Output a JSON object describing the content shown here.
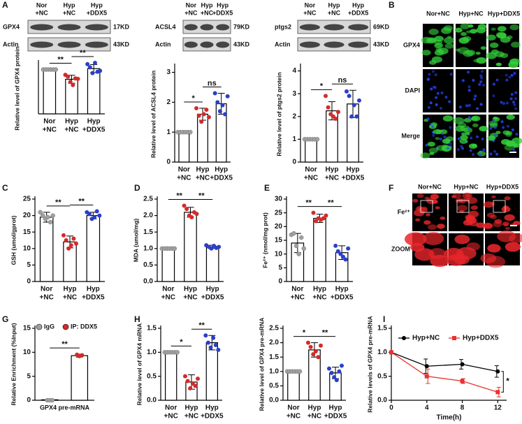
{
  "panel_labels": [
    "A",
    "B",
    "C",
    "D",
    "E",
    "F",
    "G",
    "H",
    "I"
  ],
  "blots": [
    {
      "lanes": [
        [
          "Nor",
          "+NC"
        ],
        [
          "Hyp",
          "+NC"
        ],
        [
          "Hyp",
          "+DDX5"
        ]
      ],
      "rows": [
        {
          "protein": "GPX4",
          "size": "17KD"
        },
        {
          "protein": "Actin",
          "size": "43KD"
        }
      ]
    },
    {
      "lanes": [
        [
          "Nor",
          "+NC"
        ],
        [
          "Hyp",
          "+NC"
        ],
        [
          "Hyp",
          "+DDX5"
        ]
      ],
      "rows": [
        {
          "protein": "ACSL4",
          "size": "79KD"
        },
        {
          "protein": "Actin",
          "size": "43KD"
        }
      ]
    },
    {
      "lanes": [
        [
          "Nor",
          "+NC"
        ],
        [
          "Hyp",
          "+NC"
        ],
        [
          "Hyp",
          "+DDX5"
        ]
      ],
      "rows": [
        {
          "protein": "ptgs2",
          "size": "69KD"
        },
        {
          "protein": "Actin",
          "size": "43KD"
        }
      ]
    }
  ],
  "micrographs": [
    {
      "columns": [
        "Nor+NC",
        "Hyp+NC",
        "Hyp+DDX5"
      ],
      "rows": [
        "GPX4",
        "DAPI",
        "Merge"
      ]
    },
    {
      "columns": [
        "Nor+NC",
        "Hyp+NC",
        "Hyp+DDX5"
      ],
      "rows": [
        "Fe²⁺",
        "ZOOM"
      ]
    }
  ],
  "chart_data": [
    {
      "type": "bar",
      "ylabel": "Relative level of GPX4 protein",
      "categories": [
        [
          "Nor",
          "+NC"
        ],
        [
          "Hyp",
          "+NC"
        ],
        [
          "Hyp",
          "+DDX5"
        ]
      ],
      "values": [
        1.0,
        0.78,
        1.02
      ],
      "errors": [
        0,
        0.09,
        0.09
      ],
      "points": [
        [
          1,
          1,
          1,
          1,
          1,
          1
        ],
        [
          0.88,
          0.84,
          0.72,
          0.65,
          0.8,
          0.79
        ],
        [
          1.12,
          1.05,
          0.92,
          1.15,
          0.95,
          0.97
        ]
      ],
      "point_colors": [
        "#a0a0a0",
        "#d42a2a",
        "#2b3fc7"
      ],
      "ylim": [
        0,
        1.15
      ],
      "annotations": [
        {
          "pair": [
            0,
            1
          ],
          "label": "**"
        },
        {
          "pair": [
            1,
            2
          ],
          "label": "**"
        }
      ]
    },
    {
      "type": "bar",
      "ylabel": "Relative level of ACSL4 protein",
      "categories": [
        [
          "Nor",
          "+NC"
        ],
        [
          "Hyp",
          "+NC"
        ],
        [
          "Hyp",
          "+DDX5"
        ]
      ],
      "values": [
        1.0,
        1.6,
        1.95
      ],
      "errors": [
        0,
        0.2,
        0.35
      ],
      "points": [
        [
          1,
          1,
          1,
          1,
          1,
          1
        ],
        [
          1.8,
          1.55,
          1.35,
          1.6,
          1.75,
          1.5
        ],
        [
          2.3,
          2.0,
          1.7,
          1.9,
          1.6,
          2.2
        ]
      ],
      "point_colors": [
        "#a0a0a0",
        "#d42a2a",
        "#2b3fc7"
      ],
      "ylim": [
        0,
        3.2
      ],
      "yticks": [
        0,
        1,
        2,
        3
      ],
      "annotations": [
        {
          "pair": [
            0,
            1
          ],
          "label": "*"
        },
        {
          "pair": [
            1,
            2
          ],
          "label": "ns"
        }
      ]
    },
    {
      "type": "bar",
      "ylabel": "Relative level of ptgs2 protein",
      "categories": [
        [
          "Nor",
          "+NC"
        ],
        [
          "Hyp",
          "+NC"
        ],
        [
          "Hyp",
          "+DDX5"
        ]
      ],
      "values": [
        1.0,
        2.25,
        2.55
      ],
      "errors": [
        0,
        0.4,
        0.6
      ],
      "points": [
        [
          1,
          1,
          1,
          1,
          1,
          1
        ],
        [
          2.9,
          2.4,
          2.1,
          2.0,
          1.9,
          2.2
        ],
        [
          3.1,
          2.9,
          2.0,
          2.5,
          2.0,
          2.7
        ]
      ],
      "point_colors": [
        "#a0a0a0",
        "#d42a2a",
        "#2b3fc7"
      ],
      "ylim": [
        0,
        4.2
      ],
      "yticks": [
        0,
        1,
        2,
        3,
        4
      ],
      "annotations": [
        {
          "pair": [
            0,
            1
          ],
          "label": "*"
        },
        {
          "pair": [
            1,
            2
          ],
          "label": "ns"
        }
      ]
    },
    {
      "type": "bar",
      "ylabel": "GSH (umol/gprot)",
      "categories": [
        [
          "Nor",
          "+NC"
        ],
        [
          "Hyp",
          "+NC"
        ],
        [
          "Hyp",
          "+DDX5"
        ]
      ],
      "values": [
        19.5,
        12,
        20
      ],
      "errors": [
        1.5,
        1.8,
        1.0
      ],
      "points": [
        [
          21,
          20,
          19,
          19.5,
          18,
          20
        ],
        [
          14,
          12.5,
          10,
          11,
          13,
          11.5
        ],
        [
          21,
          20.5,
          19,
          19.5,
          21.3,
          20
        ]
      ],
      "point_colors": [
        "#a0a0a0",
        "#d42a2a",
        "#2b3fc7"
      ],
      "ylim": [
        0,
        25
      ],
      "yticks": [
        0,
        5,
        10,
        15,
        20,
        25
      ],
      "annotations": [
        {
          "pair": [
            0,
            1
          ],
          "label": "**"
        },
        {
          "pair": [
            1,
            2
          ],
          "label": "**"
        }
      ]
    },
    {
      "type": "bar",
      "ylabel": "MDA (umol/mg)",
      "categories": [
        [
          "Nor",
          "+NC"
        ],
        [
          "Hyp",
          "+NC"
        ],
        [
          "Hyp",
          "+DDX5"
        ]
      ],
      "values": [
        1.0,
        2.1,
        1.05
      ],
      "errors": [
        0,
        0.15,
        0.05
      ],
      "points": [
        [
          1,
          1,
          1,
          1,
          1,
          1
        ],
        [
          2.3,
          2.2,
          2.0,
          1.95,
          2.1,
          2.05
        ],
        [
          1.1,
          1.05,
          1.0,
          1.08,
          1.02,
          1.05
        ]
      ],
      "point_colors": [
        "#a0a0a0",
        "#d42a2a",
        "#2b3fc7"
      ],
      "ylim": [
        0,
        2.5
      ],
      "yticks": [
        {
          "value": 0,
          "label": "0.0"
        },
        0.5,
        {
          "value": 1,
          "label": "1.0"
        },
        1.5,
        {
          "value": 2,
          "label": "2.0"
        },
        2.5
      ],
      "annotations": [
        {
          "pair": [
            0,
            1
          ],
          "label": "**"
        },
        {
          "pair": [
            1,
            2
          ],
          "label": "**"
        }
      ]
    },
    {
      "type": "bar",
      "ylabel": "Fe²⁺ (nmol/mg prot)",
      "categories": [
        [
          "Nor",
          "+NC"
        ],
        [
          "Hyp",
          "+NC"
        ],
        [
          "Hyp",
          "+DDX5"
        ]
      ],
      "values": [
        14,
        23,
        10.5
      ],
      "errors": [
        3.5,
        1.5,
        2.5
      ],
      "points": [
        [
          17,
          17.5,
          13,
          10,
          16,
          12
        ],
        [
          25,
          22,
          23,
          22.5,
          23,
          24
        ],
        [
          13,
          11,
          10,
          9,
          8,
          12
        ]
      ],
      "point_colors": [
        "#a0a0a0",
        "#d42a2a",
        "#2b3fc7"
      ],
      "ylim": [
        0,
        30
      ],
      "yticks": [
        0,
        5,
        10,
        15,
        20,
        25,
        30
      ],
      "annotations": [
        {
          "pair": [
            0,
            1
          ],
          "label": "**"
        },
        {
          "pair": [
            1,
            2
          ],
          "label": "**"
        }
      ]
    },
    {
      "type": "bar",
      "ylabel": "Relative Enrichment (%Input)",
      "categories": [
        "GPX4 pre-mRNA"
      ],
      "series": [
        {
          "name": "IgG",
          "color": "#a0a0a0",
          "values": [
            0.1
          ],
          "errors": [
            0
          ],
          "points": [
            [
              0,
              0,
              0
            ]
          ]
        },
        {
          "name": "IP: DDX5",
          "color": "#d42a2a",
          "values": [
            9.3
          ],
          "errors": [
            0.3
          ],
          "points": [
            [
              9.5,
              9.2,
              9.4
            ]
          ]
        }
      ],
      "ylim": [
        0,
        15
      ],
      "yticks": [
        0,
        5,
        10,
        15
      ],
      "annotations": [
        {
          "pair": [
            0,
            1
          ],
          "label": "**"
        }
      ]
    },
    {
      "type": "bar",
      "ylabel": "Relative level of GPX4 mRNA",
      "categories": [
        [
          "Nor",
          "+NC"
        ],
        [
          "Hyp",
          "+NC"
        ],
        [
          "Hyp",
          "+DDX5"
        ]
      ],
      "values": [
        1.0,
        0.38,
        1.2
      ],
      "errors": [
        0,
        0.15,
        0.15
      ],
      "points": [
        [
          1,
          1,
          1,
          1,
          1,
          1
        ],
        [
          0.5,
          0.4,
          0.25,
          0.35,
          0.3,
          0.45
        ],
        [
          1.35,
          1.2,
          1.1,
          1.3,
          1.15,
          1.05
        ]
      ],
      "point_colors": [
        "#a0a0a0",
        "#d42a2a",
        "#2b3fc7"
      ],
      "ylim": [
        0,
        1.5
      ],
      "yticks": [
        {
          "value": 0,
          "label": "0.0"
        },
        0.5,
        {
          "value": 1,
          "label": "1.0"
        },
        1.5
      ],
      "annotations": [
        {
          "pair": [
            0,
            1
          ],
          "label": "*"
        },
        {
          "pair": [
            1,
            2
          ],
          "label": "**"
        }
      ]
    },
    {
      "type": "bar",
      "ylabel": "Relative level of GPX4 pre-mRNA",
      "categories": [
        [
          "Nor",
          "+NC"
        ],
        [
          "Hyp",
          "+NC"
        ],
        [
          "Hyp",
          "+DDX5"
        ]
      ],
      "values": [
        1.0,
        1.75,
        0.95
      ],
      "errors": [
        0,
        0.25,
        0.2
      ],
      "points": [
        [
          1,
          1,
          1,
          1,
          1,
          1
        ],
        [
          2.0,
          1.85,
          1.6,
          1.7,
          1.5,
          1.9
        ],
        [
          1.1,
          0.95,
          0.8,
          0.7,
          1.0,
          1.2
        ]
      ],
      "point_colors": [
        "#a0a0a0",
        "#d42a2a",
        "#2b3fc7"
      ],
      "ylim": [
        0,
        2.5
      ],
      "yticks": [
        {
          "value": 0,
          "label": "0.0"
        },
        0.5,
        {
          "value": 1,
          "label": "1.0"
        },
        1.5,
        {
          "value": 2,
          "label": "2.0"
        },
        2.5
      ],
      "annotations": [
        {
          "pair": [
            0,
            1
          ],
          "label": "*"
        },
        {
          "pair": [
            1,
            2
          ],
          "label": "**"
        }
      ]
    },
    {
      "type": "line",
      "ylabel": "Relative levels of GPX4 pre-mRNA",
      "xlabel": "Time(h)",
      "x": [
        0,
        4,
        8,
        12
      ],
      "series": [
        {
          "name": "Hyp+NC",
          "color": "#000000",
          "values": [
            1.0,
            0.71,
            0.75,
            0.6
          ],
          "errors": [
            0,
            0.15,
            0.1,
            0.12
          ]
        },
        {
          "name": "Hyp+DDX5",
          "color": "#e8322f",
          "values": [
            1.0,
            0.5,
            0.4,
            0.17
          ],
          "errors": [
            0,
            0.15,
            0.05,
            0.1
          ]
        }
      ],
      "xlim": [
        0,
        13
      ],
      "xticks": [
        0,
        4,
        8,
        12
      ],
      "ylim": [
        0,
        1.5
      ],
      "yticks": [
        {
          "value": 0,
          "label": "0.0"
        },
        0.5,
        {
          "value": 1,
          "label": "1.0"
        },
        1.5
      ],
      "annotations": [
        {
          "label": "*"
        }
      ]
    }
  ]
}
